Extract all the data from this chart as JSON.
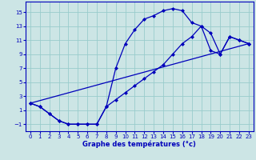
{
  "xlabel": "Graphe des températures (°c)",
  "bg_color": "#cce5e5",
  "line_color": "#0000bb",
  "grid_color": "#99cccc",
  "x_ticks": [
    0,
    1,
    2,
    3,
    4,
    5,
    6,
    7,
    8,
    9,
    10,
    11,
    12,
    13,
    14,
    15,
    16,
    17,
    18,
    19,
    20,
    21,
    22,
    23
  ],
  "y_ticks": [
    -1,
    1,
    3,
    5,
    7,
    9,
    11,
    13,
    15
  ],
  "xlim": [
    -0.5,
    23.5
  ],
  "ylim": [
    -2.0,
    16.5
  ],
  "line1_x": [
    0,
    1,
    2,
    3,
    4,
    5,
    6,
    7,
    8,
    9,
    10,
    11,
    12,
    13,
    14,
    15,
    16,
    17,
    18,
    19,
    20,
    21,
    22,
    23
  ],
  "line1_y": [
    2,
    1.5,
    0.5,
    -0.5,
    -1,
    -1,
    -1,
    -1,
    1.5,
    7,
    10.5,
    12.5,
    14,
    14.5,
    15.2,
    15.5,
    15.2,
    13.5,
    13,
    12,
    9,
    11.5,
    11,
    10.5
  ],
  "line2_x": [
    0,
    1,
    2,
    3,
    4,
    5,
    6,
    7,
    8,
    9,
    10,
    11,
    12,
    13,
    14,
    15,
    16,
    17,
    18,
    19,
    20,
    21,
    22,
    23
  ],
  "line2_y": [
    2,
    1.5,
    0.5,
    -0.5,
    -1,
    -1,
    -1,
    -1,
    1.5,
    2.5,
    3.5,
    4.5,
    5.5,
    6.5,
    7.5,
    9,
    10.5,
    11.5,
    13,
    9.5,
    9,
    11.5,
    11,
    10.5
  ],
  "line3_x": [
    0,
    23
  ],
  "line3_y": [
    2,
    10.5
  ]
}
